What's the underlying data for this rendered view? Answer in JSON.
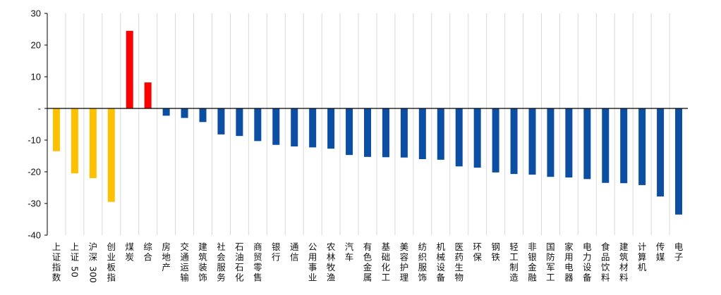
{
  "chart_data": {
    "type": "bar",
    "title": "",
    "xlabel": "",
    "ylabel": "",
    "ylim": [
      -40,
      30
    ],
    "yticks": [
      30,
      20,
      10,
      0,
      -10,
      -20,
      -30,
      -40
    ],
    "ytick_labels": [
      "30",
      "20",
      "10",
      "-",
      "-10",
      "-20",
      "-30",
      "-40"
    ],
    "grid": "vertical lines between categories",
    "legend": "none",
    "colors": {
      "index": "#FFC000",
      "positive": "#FF0000",
      "negative": "#0B4EA2",
      "grid": "#D9D9D9",
      "axis": "#000000"
    },
    "categories": [
      "上证指数",
      "上证50",
      "沪深300",
      "创业板指",
      "煤炭",
      "综合",
      "房地产",
      "交通运输",
      "建筑装饰",
      "社会服务",
      "石油石化",
      "商贸零售",
      "银行",
      "通信",
      "公用事业",
      "农林牧渔",
      "汽车",
      "有色金属",
      "基础化工",
      "美容护理",
      "纺织服饰",
      "机械设备",
      "医药生物",
      "环保",
      "钢铁",
      "轻工制造",
      "非银金融",
      "国防军工",
      "家用电器",
      "电力设备",
      "食品饮料",
      "建筑材料",
      "计算机",
      "传媒",
      "电子"
    ],
    "values": [
      -13.5,
      -20.5,
      -22.0,
      -29.5,
      24.5,
      8.2,
      -2.3,
      -3.0,
      -4.3,
      -8.2,
      -8.7,
      -10.3,
      -11.5,
      -12.0,
      -12.3,
      -12.7,
      -14.7,
      -15.3,
      -15.4,
      -15.5,
      -16.0,
      -16.2,
      -18.3,
      -18.7,
      -20.2,
      -20.7,
      -20.9,
      -21.6,
      -21.8,
      -22.3,
      -23.5,
      -23.6,
      -24.2,
      -27.8,
      -33.5
    ],
    "bar_colors": [
      "#FFC000",
      "#FFC000",
      "#FFC000",
      "#FFC000",
      "#FF0000",
      "#FF0000",
      "#0B4EA2",
      "#0B4EA2",
      "#0B4EA2",
      "#0B4EA2",
      "#0B4EA2",
      "#0B4EA2",
      "#0B4EA2",
      "#0B4EA2",
      "#0B4EA2",
      "#0B4EA2",
      "#0B4EA2",
      "#0B4EA2",
      "#0B4EA2",
      "#0B4EA2",
      "#0B4EA2",
      "#0B4EA2",
      "#0B4EA2",
      "#0B4EA2",
      "#0B4EA2",
      "#0B4EA2",
      "#0B4EA2",
      "#0B4EA2",
      "#0B4EA2",
      "#0B4EA2",
      "#0B4EA2",
      "#0B4EA2",
      "#0B4EA2",
      "#0B4EA2",
      "#0B4EA2"
    ]
  }
}
